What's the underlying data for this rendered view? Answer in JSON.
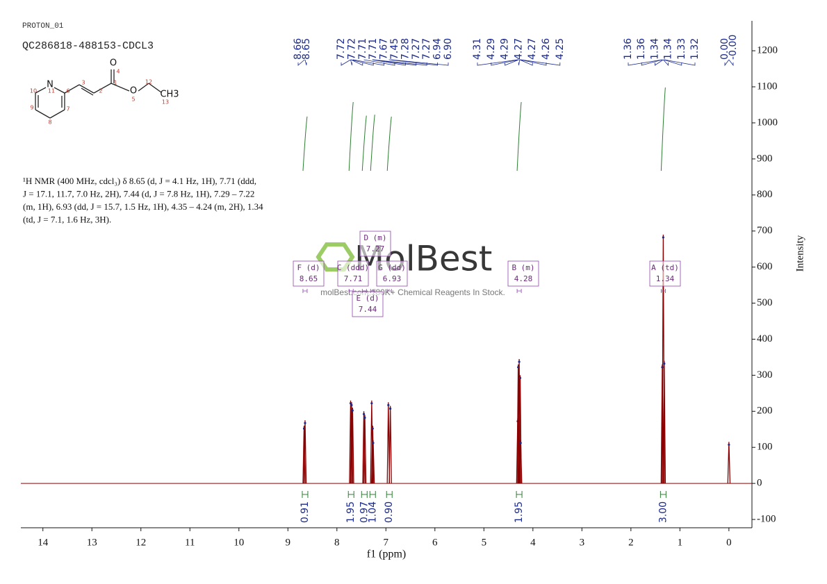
{
  "chart_data": {
    "type": "nmr",
    "experiment": "PROTON_01",
    "sample": "QC286818-488153-CDCL3",
    "structure": {
      "atoms": [
        "N",
        "O",
        "O",
        "CH3"
      ],
      "numbers": [
        10,
        11,
        6,
        3,
        2,
        1,
        4,
        5,
        12,
        13,
        9,
        8,
        7
      ]
    },
    "description": [
      "¹H NMR (400 MHz, cdcl₃) δ 8.65 (d, J = 4.1 Hz, 1H), 7.71 (ddd,",
      "J = 17.1, 11.7, 7.0 Hz, 2H), 7.44 (d, J = 7.8 Hz, 1H), 7.29 – 7.22",
      "(m, 1H), 6.93 (dd, J = 15.7, 1.5 Hz, 1H), 4.35 – 4.24 (m, 2H), 1.34",
      "(td, J = 7.1, 1.6 Hz, 3H)."
    ],
    "watermark": {
      "brand": "MolBest",
      "caption": "molBest.com,180K+ Chemical Reagents In Stock."
    },
    "x_label": "f1 (ppm)",
    "y_label": "Intensity",
    "xlim": [
      14.45,
      -0.47
    ],
    "xticks": [
      14,
      13,
      12,
      11,
      10,
      9,
      8,
      7,
      6,
      5,
      4,
      3,
      2,
      1,
      0
    ],
    "ylim": [
      -123,
      1283
    ],
    "yticks": [
      -100,
      0,
      100,
      200,
      300,
      400,
      500,
      600,
      700,
      800,
      900,
      1000,
      1100,
      1200
    ],
    "color": "#8b0000",
    "x": [
      8.67,
      8.65,
      7.72,
      7.7,
      7.68,
      7.45,
      7.43,
      7.29,
      7.27,
      7.26,
      6.95,
      6.91,
      4.31,
      4.3,
      4.28,
      4.26,
      4.25,
      1.36,
      1.34,
      1.32,
      0.0
    ],
    "values": [
      160,
      175,
      230,
      225,
      210,
      200,
      190,
      230,
      160,
      120,
      225,
      215,
      180,
      330,
      345,
      300,
      120,
      330,
      690,
      340,
      115
    ],
    "peak_labels": [
      "8.66",
      "8.65",
      "7.72",
      "7.72",
      "7.71",
      "7.71",
      "7.67",
      "7.45",
      "7.28",
      "7.27",
      "7.27",
      "6.94",
      "6.90",
      "4.31",
      "4.29",
      "4.29",
      "4.27",
      "4.27",
      "4.26",
      "4.25",
      "1.36",
      "1.36",
      "1.34",
      "1.34",
      "1.33",
      "1.32",
      "0.00",
      "-0.00"
    ],
    "multiplets": [
      {
        "name": "F (d)",
        "shift": 8.65,
        "integral": 0.91
      },
      {
        "name": "C (ddd)",
        "shift": 7.71,
        "integral": 1.95
      },
      {
        "name": "E (d)",
        "shift": 7.44,
        "integral": 0.97
      },
      {
        "name": "D (m)",
        "shift": 7.27,
        "integral": 1.04
      },
      {
        "name": "G (dd)",
        "shift": 6.93,
        "integral": {
          "value": 0.9,
          "label": "0.90"
        }
      },
      {
        "name": "B (m)",
        "shift": 4.28,
        "integral": 1.95
      },
      {
        "name": "A (td)",
        "shift": 1.34,
        "integral": {
          "value": 3,
          "label": "3.00"
        }
      }
    ]
  }
}
